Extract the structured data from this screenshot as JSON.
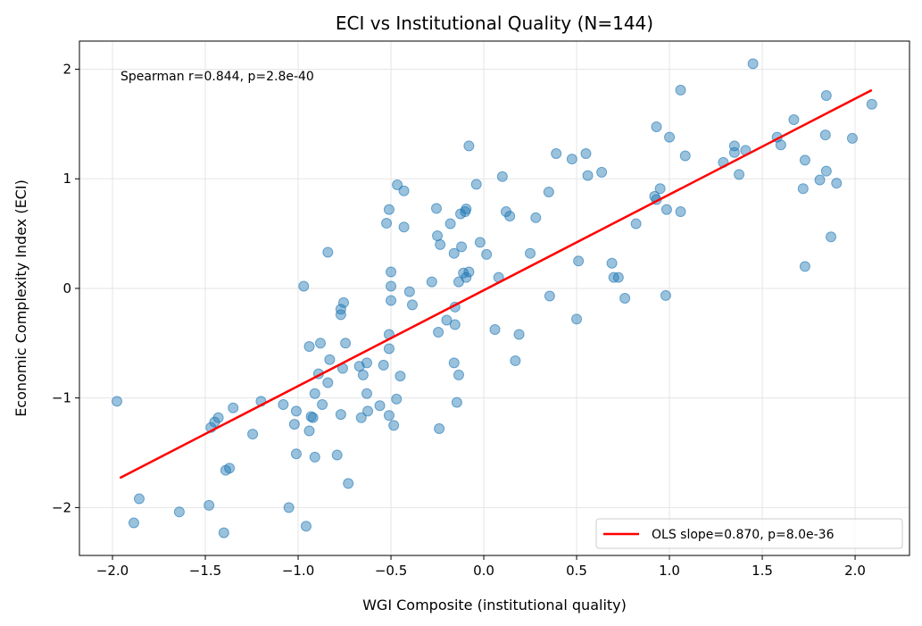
{
  "chart_data": {
    "type": "scatter",
    "title": "ECI vs Institutional Quality (N=144)",
    "xlabel": "WGI Composite (institutional quality)",
    "ylabel": "Economic Complexity Index (ECI)",
    "xlim": [
      -2.178,
      2.293
    ],
    "ylim": [
      -2.437,
      2.257
    ],
    "xticks": [
      -2.0,
      -1.5,
      -1.0,
      -0.5,
      0.0,
      0.5,
      1.0,
      1.5,
      2.0
    ],
    "xtick_labels": [
      "−2.0",
      "−1.5",
      "−1.0",
      "−0.5",
      "0.0",
      "0.5",
      "1.0",
      "1.5",
      "2.0"
    ],
    "yticks": [
      -2,
      -1,
      0,
      1,
      2
    ],
    "ytick_labels": [
      "−2",
      "−1",
      "0",
      "1",
      "2"
    ],
    "grid": true,
    "annotation": "Spearman r=0.844, p=2.8e-40",
    "legend": {
      "placement": "lower-right",
      "entries": [
        "OLS slope=0.870, p=8.0e-36"
      ]
    },
    "point_color": "#1f77b4",
    "line_color": "#ff0000",
    "fit_line": {
      "x": [
        -1.96,
        2.09
      ],
      "y": [
        -1.73,
        1.81
      ]
    },
    "points": [
      [
        -1.976,
        -1.03
      ],
      [
        -1.856,
        -1.92
      ],
      [
        -1.885,
        -2.14
      ],
      [
        -1.64,
        -2.04
      ],
      [
        -1.48,
        -1.98
      ],
      [
        -1.4,
        -2.23
      ],
      [
        -1.47,
        -1.27
      ],
      [
        -1.45,
        -1.22
      ],
      [
        -1.43,
        -1.18
      ],
      [
        -1.35,
        -1.09
      ],
      [
        -1.39,
        -1.66
      ],
      [
        -1.37,
        -1.64
      ],
      [
        -1.245,
        -1.33
      ],
      [
        -1.2,
        -1.03
      ],
      [
        -1.08,
        -1.06
      ],
      [
        -1.01,
        -1.12
      ],
      [
        -1.02,
        -1.24
      ],
      [
        -1.01,
        -1.51
      ],
      [
        -1.05,
        -2.0
      ],
      [
        -0.957,
        -2.17
      ],
      [
        -0.97,
        0.02
      ],
      [
        -0.94,
        -0.53
      ],
      [
        -0.94,
        -1.3
      ],
      [
        -0.93,
        -1.17
      ],
      [
        -0.92,
        -1.18
      ],
      [
        -0.91,
        -0.96
      ],
      [
        -0.91,
        -1.54
      ],
      [
        -0.89,
        -0.78
      ],
      [
        -0.88,
        -0.5
      ],
      [
        -0.87,
        -1.06
      ],
      [
        -0.84,
        0.33
      ],
      [
        -0.84,
        -0.86
      ],
      [
        -0.83,
        -0.65
      ],
      [
        -0.79,
        -1.52
      ],
      [
        -0.77,
        -0.19
      ],
      [
        -0.77,
        -0.24
      ],
      [
        -0.755,
        -0.13
      ],
      [
        -0.76,
        -0.73
      ],
      [
        -0.77,
        -1.15
      ],
      [
        -0.745,
        -0.5
      ],
      [
        -0.73,
        -1.78
      ],
      [
        -0.67,
        -0.71
      ],
      [
        -0.66,
        -1.18
      ],
      [
        -0.65,
        -0.79
      ],
      [
        -0.63,
        -0.68
      ],
      [
        -0.63,
        -0.96
      ],
      [
        -0.625,
        -1.12
      ],
      [
        -0.56,
        -1.07
      ],
      [
        -0.54,
        -0.7
      ],
      [
        -0.524,
        0.595
      ],
      [
        -0.51,
        0.72
      ],
      [
        -0.51,
        -0.42
      ],
      [
        -0.51,
        -0.55
      ],
      [
        -0.51,
        -1.16
      ],
      [
        -0.5,
        0.15
      ],
      [
        -0.5,
        0.02
      ],
      [
        -0.5,
        -0.11
      ],
      [
        -0.485,
        -1.25
      ],
      [
        -0.47,
        -1.01
      ],
      [
        -0.466,
        0.945
      ],
      [
        -0.45,
        -0.8
      ],
      [
        -0.43,
        0.89
      ],
      [
        -0.43,
        0.56
      ],
      [
        -0.4,
        -0.03
      ],
      [
        -0.385,
        -0.15
      ],
      [
        -0.28,
        0.06
      ],
      [
        -0.255,
        0.73
      ],
      [
        -0.25,
        0.48
      ],
      [
        -0.245,
        -0.4
      ],
      [
        -0.24,
        -1.28
      ],
      [
        -0.235,
        0.4
      ],
      [
        -0.2,
        -0.29
      ],
      [
        -0.18,
        0.59
      ],
      [
        -0.16,
        0.32
      ],
      [
        -0.16,
        -0.68
      ],
      [
        -0.155,
        -0.17
      ],
      [
        -0.155,
        -0.33
      ],
      [
        -0.145,
        -1.04
      ],
      [
        -0.135,
        0.06
      ],
      [
        -0.135,
        -0.79
      ],
      [
        -0.125,
        0.68
      ],
      [
        -0.12,
        0.38
      ],
      [
        -0.11,
        0.14
      ],
      [
        -0.1,
        0.7
      ],
      [
        -0.095,
        0.725
      ],
      [
        -0.095,
        0.1
      ],
      [
        -0.08,
        0.15
      ],
      [
        -0.08,
        1.3
      ],
      [
        -0.04,
        0.95
      ],
      [
        -0.02,
        0.42
      ],
      [
        0.015,
        0.31
      ],
      [
        0.06,
        -0.375
      ],
      [
        0.08,
        0.1
      ],
      [
        0.1,
        1.02
      ],
      [
        0.12,
        0.7
      ],
      [
        0.14,
        0.66
      ],
      [
        0.17,
        -0.66
      ],
      [
        0.19,
        -0.42
      ],
      [
        0.25,
        0.32
      ],
      [
        0.28,
        0.645
      ],
      [
        0.35,
        0.88
      ],
      [
        0.355,
        -0.07
      ],
      [
        0.39,
        1.23
      ],
      [
        0.475,
        1.18
      ],
      [
        0.5,
        -0.28
      ],
      [
        0.51,
        0.25
      ],
      [
        0.55,
        1.23
      ],
      [
        0.56,
        1.03
      ],
      [
        0.635,
        1.06
      ],
      [
        0.69,
        0.23
      ],
      [
        0.7,
        0.1
      ],
      [
        0.725,
        0.1
      ],
      [
        0.76,
        -0.09
      ],
      [
        0.82,
        0.59
      ],
      [
        0.92,
        0.84
      ],
      [
        0.93,
        1.475
      ],
      [
        0.93,
        0.81
      ],
      [
        0.95,
        0.91
      ],
      [
        0.98,
        -0.065
      ],
      [
        0.985,
        0.72
      ],
      [
        1.0,
        1.38
      ],
      [
        1.06,
        0.7
      ],
      [
        1.06,
        1.81
      ],
      [
        1.085,
        1.21
      ],
      [
        1.29,
        1.15
      ],
      [
        1.35,
        1.3
      ],
      [
        1.35,
        1.24
      ],
      [
        1.375,
        1.04
      ],
      [
        1.41,
        1.26
      ],
      [
        1.45,
        2.05
      ],
      [
        1.67,
        1.54
      ],
      [
        1.58,
        1.38
      ],
      [
        1.6,
        1.31
      ],
      [
        1.72,
        0.91
      ],
      [
        1.73,
        1.17
      ],
      [
        1.73,
        0.2
      ],
      [
        1.81,
        0.99
      ],
      [
        1.84,
        1.4
      ],
      [
        1.845,
        1.76
      ],
      [
        1.845,
        1.07
      ],
      [
        1.87,
        0.47
      ],
      [
        1.9,
        0.96
      ],
      [
        1.985,
        1.37
      ],
      [
        2.09,
        1.68
      ]
    ]
  }
}
